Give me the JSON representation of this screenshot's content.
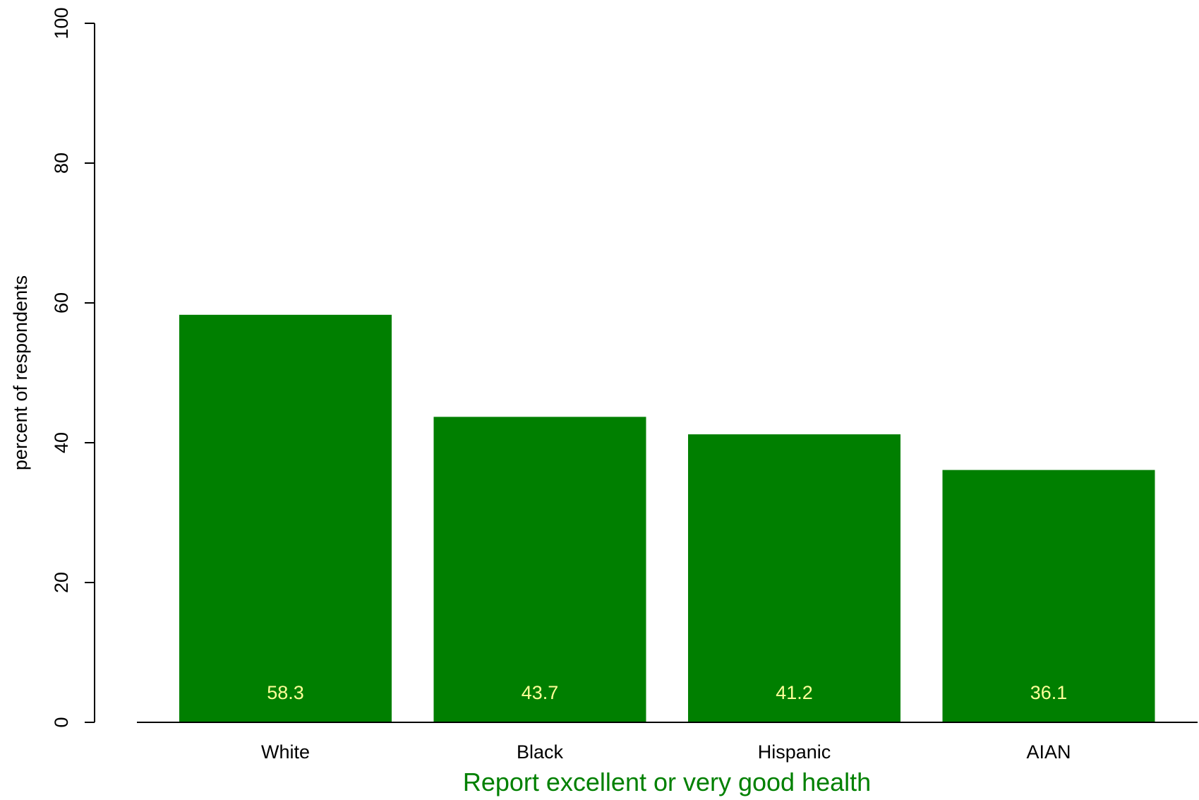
{
  "chart_data": {
    "type": "bar",
    "title": "",
    "categories": [
      "White",
      "Black",
      "Hispanic",
      "AIAN"
    ],
    "values": [
      58.3,
      43.7,
      41.2,
      36.1
    ],
    "value_labels": [
      "58.3",
      "43.7",
      "41.2",
      "36.1"
    ],
    "xlabel": "Report excellent or very good health",
    "ylabel": "percent of respondents",
    "ylim": [
      0,
      100
    ],
    "yticks": [
      0,
      20,
      40,
      60,
      80,
      100
    ],
    "ytick_labels": [
      "0",
      "20",
      "40",
      "60",
      "80",
      "100"
    ],
    "grid": false,
    "legend": "none"
  },
  "colors": {
    "bar": "#007f00",
    "value_label": "#ffff99",
    "xlabel": "#008000",
    "axis": "#000000"
  }
}
